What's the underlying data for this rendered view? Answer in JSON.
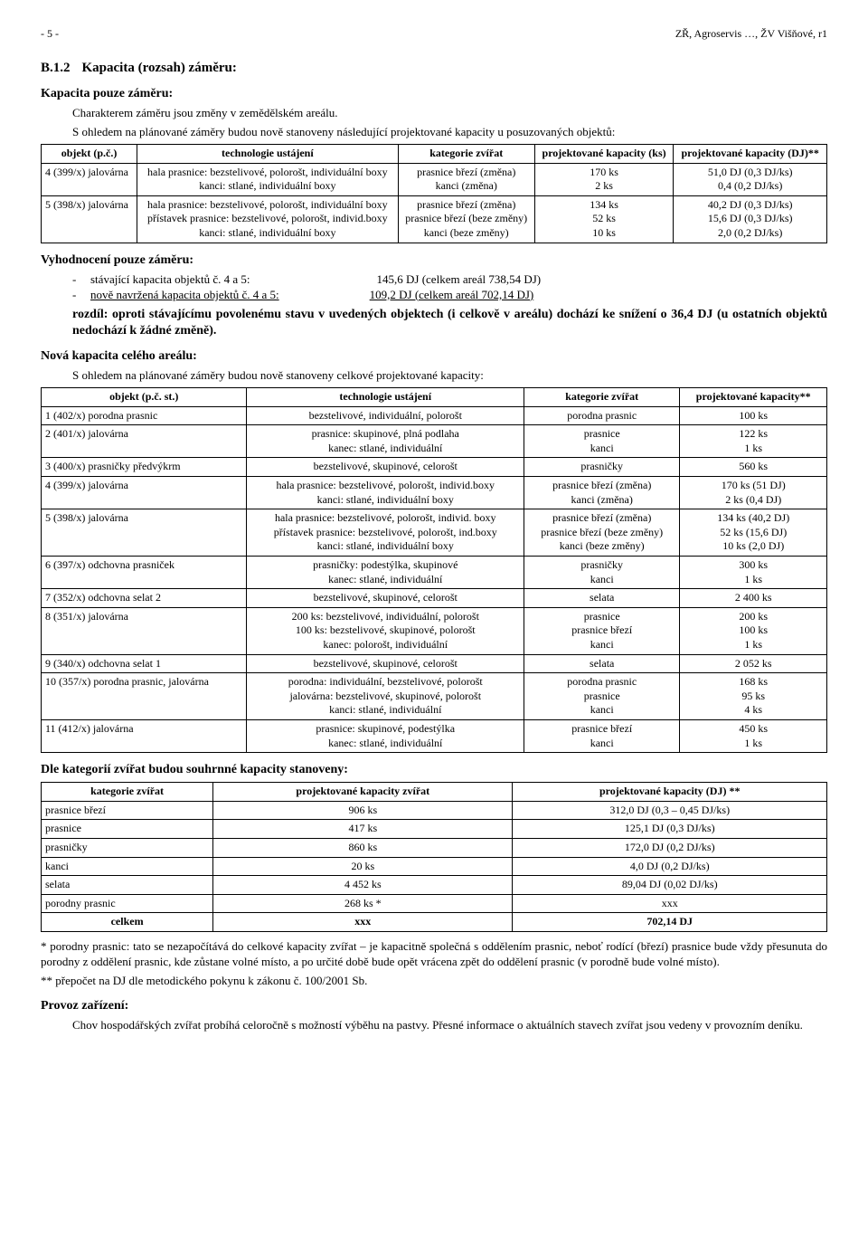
{
  "header": {
    "left": "- 5 -",
    "right": "ZŘ, Agroservis …, ŽV Višňové, r1"
  },
  "section": {
    "num": "B.1.2",
    "title": "Kapacita (rozsah) záměru:"
  },
  "sub1": {
    "head": "Kapacita pouze záměru:",
    "intro1": "Charakterem záměru jsou změny v zemědělském areálu.",
    "intro2": "S ohledem na plánované záměry budou nově stanoveny následující projektované kapacity u posuzovaných objektů:"
  },
  "t1": {
    "h": [
      "objekt (p.č.)",
      "technologie ustájení",
      "kategorie zvířat",
      "projektované kapacity (ks)",
      "projektované kapacity (DJ)**"
    ],
    "r1": {
      "a": "4 (399/x) jalovárna",
      "b1": "hala prasnice: bezstelivové, polorošt, individuální boxy",
      "b2": "kanci: stlané, individuální boxy",
      "c1": "prasnice březí (změna)",
      "c2": "kanci (změna)",
      "d1": "170 ks",
      "d2": "2 ks",
      "e1": "51,0 DJ (0,3 DJ/ks)",
      "e2": "0,4 (0,2 DJ/ks)"
    },
    "r2": {
      "a": "5 (398/x) jalovárna",
      "b1": "hala prasnice: bezstelivové, polorošt, individuální boxy",
      "b2": "přístavek prasnice: bezstelivové, polorošt, individ.boxy",
      "b3": "kanci: stlané, individuální boxy",
      "c1": "prasnice březí (změna)",
      "c2": "prasnice březí (beze změny)",
      "c3": "kanci (beze změny)",
      "d1": "134 ks",
      "d2": "52 ks",
      "d3": "10 ks",
      "e1": "40,2 DJ (0,3 DJ/ks)",
      "e2": "15,6 DJ (0,3 DJ/ks)",
      "e3": "2,0 (0,2 DJ/ks)"
    }
  },
  "eval": {
    "head": "Vyhodnocení pouze záměru:",
    "l1a": "stávající kapacita objektů č. 4 a 5:",
    "l1b": "145,6 DJ  (celkem areál 738,54 DJ)",
    "l2a": "nově navržená kapacita objektů č. 4 a 5:",
    "l2b": "109,2 DJ  (celkem areál 702,14 DJ)",
    "boldline": "rozdíl: oproti stávajícímu povolenému stavu v uvedených objektech (i celkově v areálu) dochází ke snížení o 36,4 DJ (u ostatních objektů nedochází k žádné změně)."
  },
  "sub2": {
    "head": "Nová kapacita celého areálu:",
    "intro": "S ohledem na plánované záměry budou nově stanoveny celkové projektované kapacity:"
  },
  "t2": {
    "h": [
      "objekt (p.č. st.)",
      "technologie ustájení",
      "kategorie zvířat",
      "projektované kapacity**"
    ],
    "rows": [
      [
        "1 (402/x) porodna prasnic",
        "bezstelivové, individuální, polorošt",
        "porodna prasnic",
        "100 ks"
      ],
      [
        "2 (401/x) jalovárna",
        "prasnice: skupinové, plná podlaha\nkanec: stlané, individuální",
        "prasnice\nkanci",
        "122 ks\n1 ks"
      ],
      [
        "3 (400/x) prasničky předvýkrm",
        "bezstelivové, skupinové, celorošt",
        "prasničky",
        "560 ks"
      ],
      [
        "4 (399/x) jalovárna",
        "hala prasnice: bezstelivové, polorošt, individ.boxy\nkanci: stlané, individuální boxy",
        "prasnice březí (změna)\nkanci (změna)",
        "170 ks (51 DJ)\n2 ks (0,4 DJ)"
      ],
      [
        "5 (398/x) jalovárna",
        "hala prasnice: bezstelivové, polorošt, individ. boxy\npřístavek prasnice: bezstelivové, polorošt, ind.boxy\nkanci: stlané, individuální boxy",
        "prasnice březí (změna)\nprasnice březí (beze změny)\nkanci (beze změny)",
        "134 ks (40,2 DJ)\n52 ks (15,6 DJ)\n10 ks (2,0 DJ)"
      ],
      [
        "6 (397/x) odchovna prasniček",
        "prasničky: podestýlka, skupinové\nkanec: stlané, individuální",
        "prasničky\nkanci",
        "300 ks\n1 ks"
      ],
      [
        "7 (352/x) odchovna selat 2",
        "bezstelivové, skupinové, celorošt",
        "selata",
        "2 400 ks"
      ],
      [
        "8 (351/x) jalovárna",
        "200 ks: bezstelivové, individuální, polorošt\n100 ks: bezstelivové, skupinové, polorošt\nkanec: polorošt, individuální",
        "prasnice\nprasnice březí\nkanci",
        "200 ks\n100 ks\n1 ks"
      ],
      [
        "9 (340/x) odchovna selat 1",
        "bezstelivové, skupinové, celorošt",
        "selata",
        "2 052 ks"
      ],
      [
        "10 (357/x) porodna prasnic, jalovárna",
        "porodna: individuální, bezstelivové, polorošt\njalovárna: bezstelivové, skupinové, polorošt\nkanci: stlané, individuální",
        "porodna prasnic\nprasnice\nkanci",
        "168 ks\n95 ks\n4 ks"
      ],
      [
        "11 (412/x) jalovárna",
        "prasnice: skupinové, podestýlka\nkanec: stlané, individuální",
        "prasnice březí\nkanci",
        "450 ks\n1 ks"
      ]
    ]
  },
  "sub3": {
    "head": "Dle kategorií zvířat budou souhrnné kapacity stanoveny:"
  },
  "t3": {
    "h": [
      "kategorie zvířat",
      "projektované kapacity zvířat",
      "projektované kapacity (DJ) **"
    ],
    "rows": [
      [
        "prasnice březí",
        "906 ks",
        "312,0 DJ (0,3 – 0,45 DJ/ks)"
      ],
      [
        "prasnice",
        "417 ks",
        "125,1 DJ (0,3 DJ/ks)"
      ],
      [
        "prasničky",
        "860 ks",
        "172,0 DJ (0,2 DJ/ks)"
      ],
      [
        "kanci",
        "20 ks",
        "4,0 DJ (0,2 DJ/ks)"
      ],
      [
        "selata",
        "4 452 ks",
        "89,04 DJ (0,02 DJ/ks)"
      ],
      [
        "porodny prasnic",
        "268 ks *",
        "xxx"
      ]
    ],
    "tot": [
      "celkem",
      "xxx",
      "702,14 DJ"
    ]
  },
  "notes": {
    "n1": "* porodny prasnic: tato se nezapočítává do celkové kapacity zvířat – je kapacitně společná s oddělením prasnic, neboť rodící (březí) prasnice bude vždy přesunuta do porodny z oddělení prasnic, kde zůstane volné místo, a po určité době bude opět vrácena zpět do oddělení prasnic (v porodně bude volné místo).",
    "n2": "** přepočet na DJ dle metodického pokynu k zákonu č. 100/2001 Sb."
  },
  "sub4": {
    "head": "Provoz zařízení:",
    "p": "Chov hospodářských zvířat probíhá celoročně s možností výběhu na pastvy. Přesné informace o aktuálních stavech zvířat jsou vedeny v provozním deníku."
  }
}
